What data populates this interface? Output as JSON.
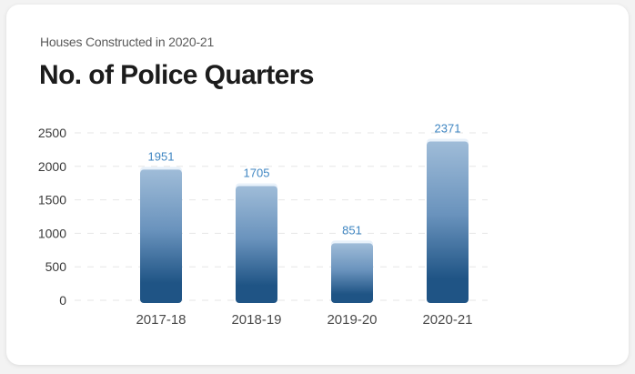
{
  "subtitle": "Houses Constructed in 2020-21",
  "title": "No. of Police Quarters",
  "colors": {
    "bar_top": "#9fbcd8",
    "bar_bottom": "#1f5485",
    "value_label": "#3f86c2",
    "grid": "#e6e6e6"
  },
  "chart_data": {
    "type": "bar",
    "categories": [
      "2017-18",
      "2018-19",
      "2019-20",
      "2020-21"
    ],
    "values": [
      1951,
      1705,
      851,
      2371
    ],
    "ylim": [
      0,
      2500
    ],
    "yticks": [
      "0",
      "500",
      "1000",
      "1500",
      "2000",
      "2500"
    ],
    "grid": true,
    "title": "No. of Police Quarters",
    "subtitle": "Houses Constructed in 2020-21"
  }
}
